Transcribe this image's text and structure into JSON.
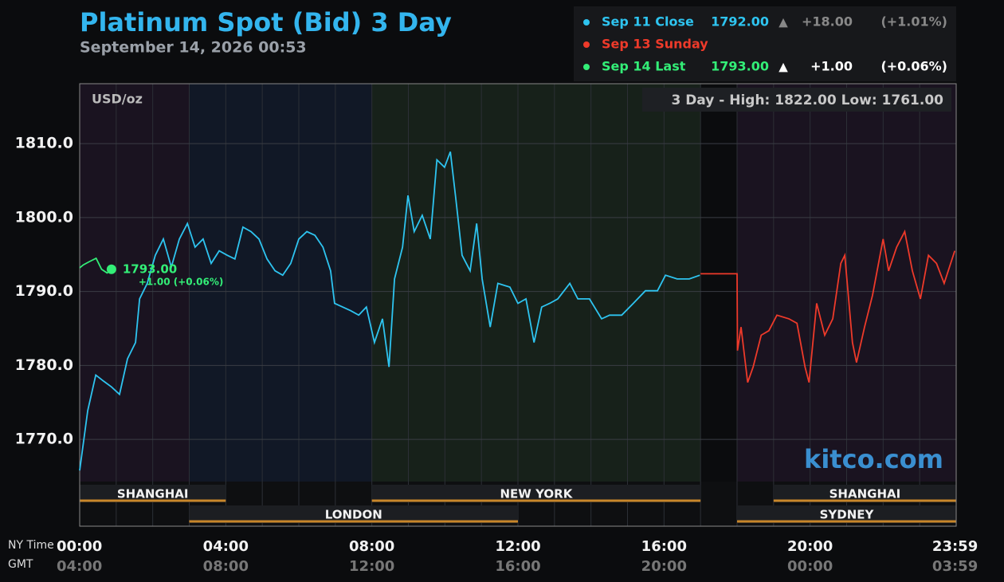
{
  "chart_data": {
    "type": "line",
    "title": "Platinum Spot (Bid) 3 Day",
    "subtitle": "September 14, 2026 00:53",
    "unit_label": "USD/oz",
    "range_label": "3 Day - High: 1822.00  Low: 1761.00",
    "watermark": "kitco.com",
    "x_axis_label": "NY Time",
    "x2_axis_label": "GMT",
    "xlim": [
      0,
      24
    ],
    "ylim": [
      1764.3,
      1818.1
    ],
    "yticks": [
      {
        "value": 1770,
        "label": "1770.0"
      },
      {
        "value": 1780,
        "label": "1780.0"
      },
      {
        "value": 1790,
        "label": "1790.0"
      },
      {
        "value": 1800,
        "label": "1800.0"
      },
      {
        "value": 1810,
        "label": "1810.0"
      }
    ],
    "xticks": [
      {
        "value": 0,
        "label": "00:00"
      },
      {
        "value": 4,
        "label": "04:00"
      },
      {
        "value": 8,
        "label": "08:00"
      },
      {
        "value": 12,
        "label": "12:00"
      },
      {
        "value": 16,
        "label": "16:00"
      },
      {
        "value": 20,
        "label": "20:00"
      },
      {
        "value": 23.983,
        "label": "23:59"
      }
    ],
    "gmt_ticks": [
      {
        "value": 0,
        "label": "04:00"
      },
      {
        "value": 4,
        "label": "08:00"
      },
      {
        "value": 8,
        "label": "12:00"
      },
      {
        "value": 12,
        "label": "16:00"
      },
      {
        "value": 16,
        "label": "20:00"
      },
      {
        "value": 20,
        "label": "00:00"
      },
      {
        "value": 23.983,
        "label": "03:59"
      }
    ],
    "sessions": [
      {
        "name": "SHANGHAI",
        "start": 0,
        "end": 4,
        "row": 0
      },
      {
        "name": "NEW YORK",
        "start": 8,
        "end": 17,
        "row": 0
      },
      {
        "name": "SHANGHAI",
        "start": 19,
        "end": 24,
        "row": 0
      },
      {
        "name": "LONDON",
        "start": 3,
        "end": 12,
        "row": 1
      },
      {
        "name": "SYDNEY",
        "start": 18,
        "end": 24,
        "row": 1
      }
    ],
    "shading": [
      {
        "start": 0,
        "end": 3,
        "color": "#1a1320"
      },
      {
        "start": 3,
        "end": 8,
        "color": "#111826"
      },
      {
        "start": 8,
        "end": 17,
        "color": "#17211a"
      },
      {
        "start": 17,
        "end": 18,
        "color": "#0b0c0e"
      },
      {
        "start": 18,
        "end": 24,
        "color": "#1a1320"
      }
    ],
    "series": [
      {
        "name": "Sep 11 Close",
        "color": "#2ec4f0",
        "price": "1792.00",
        "arrow": "▲",
        "change": "+18.00",
        "pct": "(+1.01%)",
        "x": [
          0,
          0.22,
          0.44,
          0.65,
          0.87,
          1.09,
          1.31,
          1.53,
          1.64,
          1.85,
          2.07,
          2.29,
          2.51,
          2.73,
          2.95,
          3.16,
          3.38,
          3.6,
          3.82,
          4.04,
          4.25,
          4.47,
          4.69,
          4.91,
          5.13,
          5.35,
          5.56,
          5.78,
          6,
          6.22,
          6.44,
          6.66,
          6.87,
          6.98,
          7.2,
          7.42,
          7.64,
          7.85,
          8.07,
          8.29,
          8.47,
          8.62,
          8.84,
          8.99,
          9.16,
          9.38,
          9.6,
          9.78,
          9.99,
          10.15,
          10.3,
          10.47,
          10.69,
          10.87,
          11.02,
          11.24,
          11.45,
          11.78,
          12,
          12.22,
          12.44,
          12.65,
          12.87,
          13.09,
          13.42,
          13.64,
          13.96,
          14.29,
          14.51,
          14.84,
          15.16,
          15.49,
          15.82,
          16.04,
          16.36,
          16.69,
          16.98
        ],
        "values": [
          1765.8,
          1773.9,
          1778.7,
          1777.9,
          1777.1,
          1776.1,
          1780.9,
          1783.1,
          1789,
          1791.1,
          1794.9,
          1797.1,
          1793.3,
          1797.1,
          1799.2,
          1796,
          1797.1,
          1793.8,
          1795.5,
          1794.9,
          1794.4,
          1798.7,
          1798.1,
          1797.1,
          1794.4,
          1792.8,
          1792.2,
          1793.8,
          1797.1,
          1798.1,
          1797.6,
          1796,
          1792.8,
          1788.4,
          1787.9,
          1787.4,
          1786.8,
          1787.9,
          1783.1,
          1786.3,
          1779.8,
          1791.7,
          1796,
          1803,
          1798.1,
          1800.3,
          1797.1,
          1807.8,
          1806.8,
          1808.9,
          1802.5,
          1794.9,
          1792.8,
          1799.2,
          1791.7,
          1785.2,
          1791.1,
          1790.6,
          1788.4,
          1789,
          1783.1,
          1787.9,
          1788.4,
          1789,
          1791.1,
          1789,
          1789,
          1786.3,
          1786.8,
          1786.8,
          1788.4,
          1790.1,
          1790.1,
          1792.2,
          1791.7,
          1791.7,
          1792.2
        ]
      },
      {
        "name": "Sep 13 Sunday",
        "color": "#ee3a2a",
        "x": [
          17,
          18,
          18.01,
          18.11,
          18.29,
          18.44,
          18.66,
          18.87,
          19.09,
          19.42,
          19.64,
          19.86,
          19.97,
          20.18,
          20.4,
          20.62,
          20.84,
          20.95,
          21.16,
          21.27,
          21.49,
          21.71,
          22,
          22.15,
          22.37,
          22.59,
          22.8,
          23.02,
          23.24,
          23.46,
          23.67,
          23.96
        ],
        "values": [
          1792.4,
          1792.4,
          1782,
          1785.2,
          1777.7,
          1779.8,
          1784.1,
          1784.7,
          1786.8,
          1786.3,
          1785.7,
          1779.8,
          1777.7,
          1788.4,
          1784.1,
          1786.3,
          1793.8,
          1794.9,
          1783.1,
          1780.4,
          1785.2,
          1789.5,
          1797.1,
          1792.8,
          1796,
          1798.1,
          1792.8,
          1789,
          1794.9,
          1793.8,
          1791.1,
          1795.5
        ]
      },
      {
        "name": "Sep 14 Last",
        "color": "#33ee77",
        "price": "1793.00",
        "arrow": "▲",
        "change": "+1.00",
        "pct": "(+0.06%)",
        "last_label": "1793.00",
        "last_change": "+1.00 (+0.06%)",
        "x": [
          0,
          0.1,
          0.25,
          0.45,
          0.6,
          0.75,
          0.87
        ],
        "values": [
          1793.2,
          1793.6,
          1794,
          1794.5,
          1793,
          1792.5,
          1793
        ]
      }
    ]
  }
}
